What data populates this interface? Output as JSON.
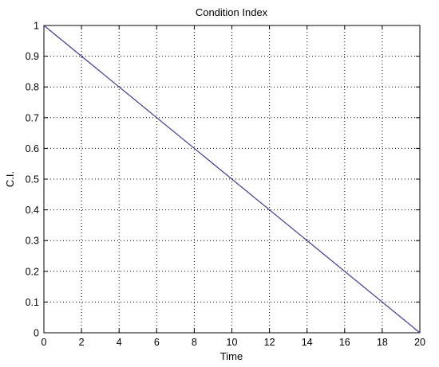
{
  "chart_data": {
    "type": "line",
    "title": "Condition Index",
    "xlabel": "Time",
    "ylabel": "C.I.",
    "xlim": [
      0,
      20
    ],
    "ylim": [
      0,
      1
    ],
    "x_ticks": [
      0,
      2,
      4,
      6,
      8,
      10,
      12,
      14,
      16,
      18,
      20
    ],
    "y_ticks": [
      0,
      0.1,
      0.2,
      0.3,
      0.4,
      0.5,
      0.6,
      0.7,
      0.8,
      0.9,
      1
    ],
    "x_tick_labels": [
      "0",
      "2",
      "4",
      "6",
      "8",
      "10",
      "12",
      "14",
      "16",
      "18",
      "20"
    ],
    "y_tick_labels": [
      "0",
      "0.1",
      "0.2",
      "0.3",
      "0.4",
      "0.5",
      "0.6",
      "0.7",
      "0.8",
      "0.9",
      "1"
    ],
    "grid": true,
    "grid_style": "dotted",
    "series": [
      {
        "color": "#3c3c9c",
        "x": [
          0,
          20
        ],
        "y": [
          1,
          0
        ]
      }
    ]
  }
}
